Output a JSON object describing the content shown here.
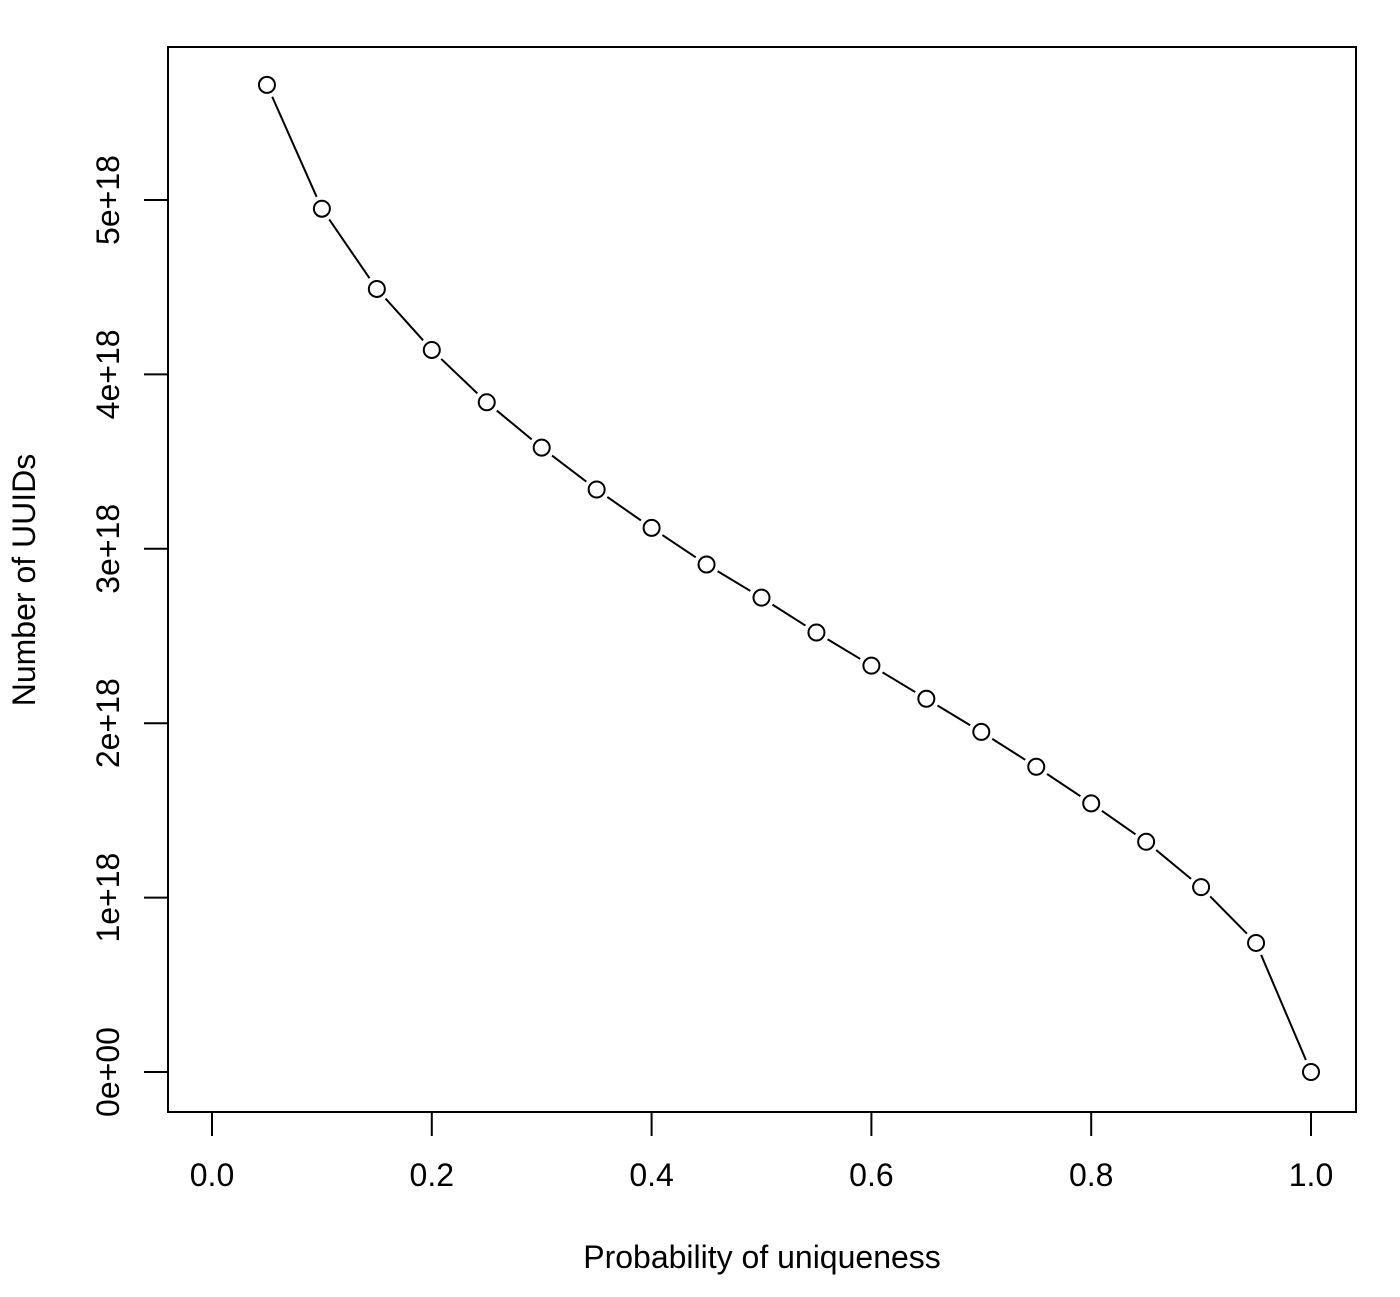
{
  "chart_data": {
    "type": "line",
    "xlabel": "Probability of uniqueness",
    "ylabel": "Number of UUIDs",
    "xlim": [
      0.0,
      1.0
    ],
    "ylim": [
      0,
      5.7e+18
    ],
    "x_ticks": [
      0.0,
      0.2,
      0.4,
      0.6,
      0.8,
      1.0
    ],
    "x_tick_labels": [
      "0.0",
      "0.2",
      "0.4",
      "0.6",
      "0.8",
      "1.0"
    ],
    "y_ticks": [
      0,
      1e+18,
      2e+18,
      3e+18,
      4e+18,
      5e+18
    ],
    "y_tick_labels": [
      "0e+00",
      "1e+18",
      "2e+18",
      "3e+18",
      "4e+18",
      "5e+18"
    ],
    "grid": false,
    "line_style": "solid-with-gaps",
    "marker": "open-circle",
    "x": [
      0.05,
      0.1,
      0.15,
      0.2,
      0.25,
      0.3,
      0.35,
      0.4,
      0.45,
      0.5,
      0.55,
      0.6,
      0.65,
      0.7,
      0.75,
      0.8,
      0.85,
      0.9,
      0.95,
      1.0
    ],
    "y": [
      5.66e+18,
      4.95e+18,
      4.49e+18,
      4.14e+18,
      3.84e+18,
      3.58e+18,
      3.34e+18,
      3.12e+18,
      2.91e+18,
      2.72e+18,
      2.52e+18,
      2.33e+18,
      2.14e+18,
      1.95e+18,
      1.75e+18,
      1.54e+18,
      1.32e+18,
      1.06e+18,
      7.4e+17,
      0.0
    ]
  }
}
